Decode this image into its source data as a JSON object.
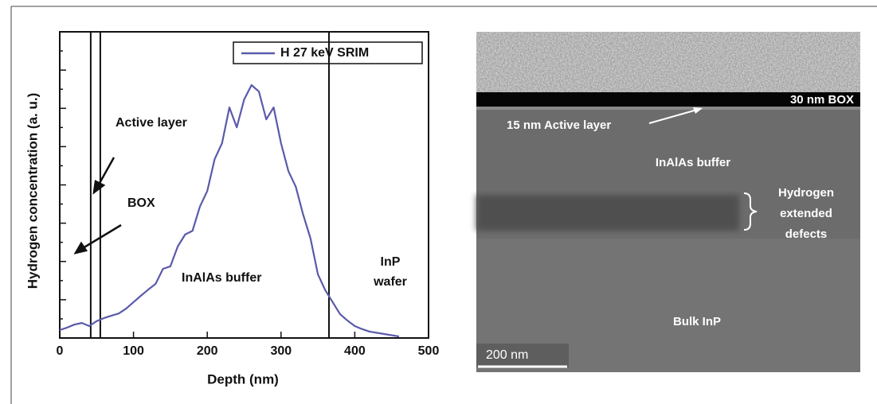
{
  "chart_data": {
    "type": "line",
    "x": [
      0,
      10,
      20,
      30,
      40,
      50,
      60,
      70,
      80,
      90,
      100,
      110,
      120,
      130,
      140,
      150,
      160,
      170,
      180,
      190,
      200,
      210,
      220,
      230,
      240,
      250,
      260,
      270,
      280,
      290,
      300,
      310,
      320,
      330,
      340,
      350,
      360,
      370,
      380,
      390,
      400,
      410,
      420,
      440,
      460
    ],
    "series": [
      {
        "name": "H 27 keV SRIM",
        "color": "#5a5aaa",
        "values": [
          2.6,
          3.4,
          4.4,
          4.9,
          3.9,
          5.5,
          6.5,
          7.3,
          8,
          9.6,
          11.7,
          13.8,
          15.8,
          17.7,
          22.6,
          23.4,
          29.9,
          33.8,
          35,
          42.9,
          48,
          58.4,
          63.6,
          75.3,
          68.8,
          77.9,
          82.6,
          80.5,
          71.4,
          75.3,
          63.6,
          54.5,
          49.4,
          40.3,
          32.5,
          20.8,
          15.6,
          11.7,
          7.8,
          5.7,
          3.9,
          2.9,
          2.1,
          1.3,
          0.5
        ]
      }
    ],
    "xlim": [
      0,
      500
    ],
    "xticks": [
      0,
      100,
      200,
      300,
      400,
      500
    ],
    "ylim": [
      0,
      100
    ],
    "xlabel": "Depth (nm)",
    "ylabel": "Hydrogen concentration (a. u.)",
    "vlines": [
      42,
      55,
      365
    ],
    "annotations": [
      "Active layer",
      "BOX",
      "InAlAs buffer",
      "InP",
      "wafer"
    ]
  },
  "image": {
    "box_label": "30 nm BOX",
    "active_label": "15 nm Active layer",
    "buffer_label": "InAlAs buffer",
    "defects_label": [
      "Hydrogen",
      "extended",
      "defects"
    ],
    "bulk_label": "Bulk InP",
    "scale_label": "200 nm"
  }
}
